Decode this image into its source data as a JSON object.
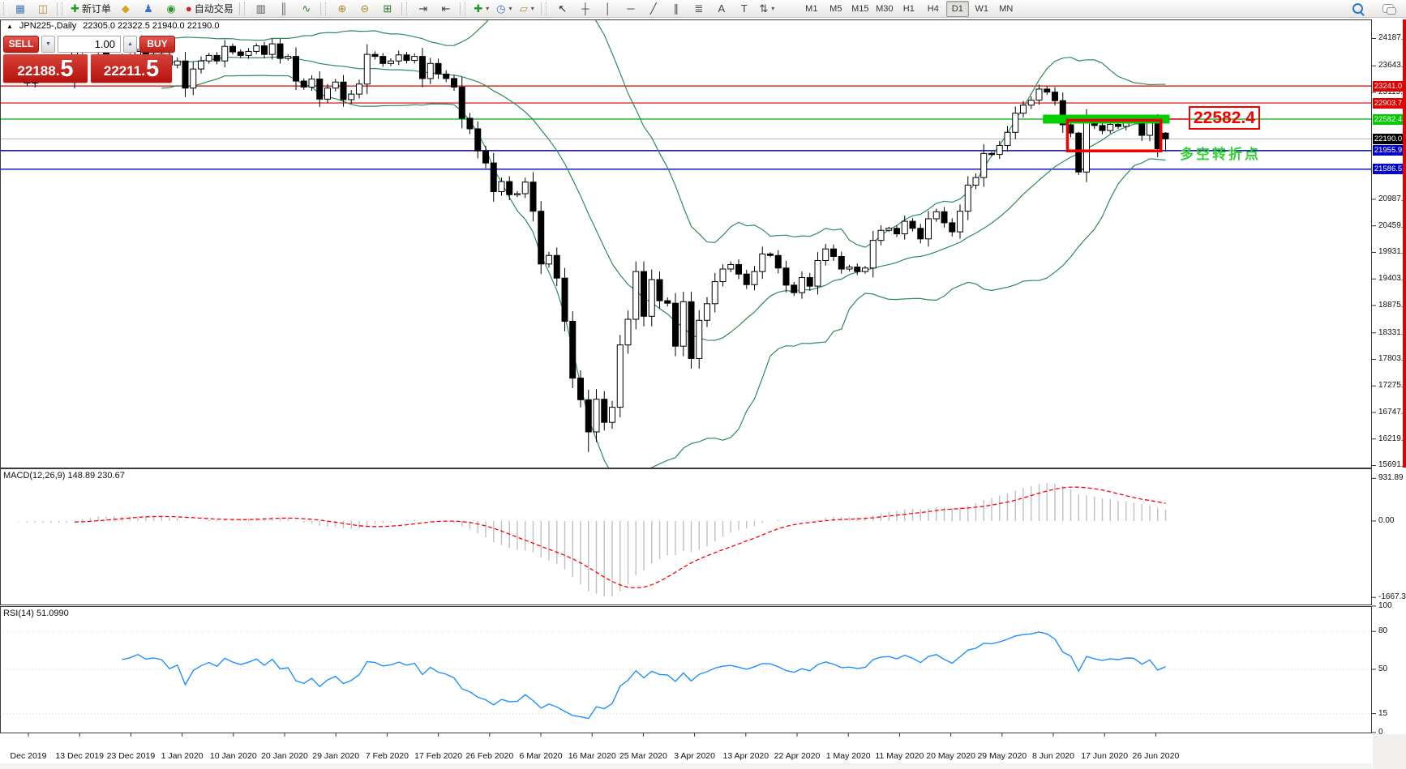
{
  "header": {
    "collapse_arrow": "▲",
    "symbol_period": "JPN225-,Daily",
    "ohlc": "22305.0 22322.5 21940.0 22190.0"
  },
  "trade_panel": {
    "sell_label": "SELL",
    "buy_label": "BUY",
    "volume": "1.00",
    "bid": "22188.",
    "bid_pip": "5",
    "ask": "22211.",
    "ask_pip": "5",
    "spin_down_icon": "▼",
    "spin_up_icon": "▲"
  },
  "toolbar": {
    "groups": [
      {
        "items": [
          {
            "name": "new-chart-icon",
            "glyph": "▦",
            "color": "#4a7ab5"
          },
          {
            "name": "profiles-icon",
            "glyph": "◫",
            "color": "#b08a30"
          }
        ]
      },
      {
        "items": [
          {
            "name": "new-order-button",
            "glyph": "✚",
            "color": "#1f9e1f",
            "label": "新订单"
          },
          {
            "name": "experts-icon",
            "glyph": "◆",
            "color": "#d5a518"
          },
          {
            "name": "mql-community-icon",
            "glyph": "♟",
            "color": "#3a6fd8"
          },
          {
            "name": "signals-icon",
            "glyph": "◉",
            "color": "#2a9a2a"
          },
          {
            "name": "auto-trading-button",
            "glyph": "●",
            "color": "#d02020",
            "label": "自动交易"
          }
        ]
      },
      {
        "items": [
          {
            "name": "bar-chart-icon",
            "glyph": "▥",
            "color": "#555555"
          },
          {
            "name": "candlestick-chart-icon",
            "glyph": "║",
            "color": "#555555"
          },
          {
            "name": "line-chart-icon",
            "glyph": "∿",
            "color": "#2a7a2a"
          }
        ]
      },
      {
        "items": [
          {
            "name": "zoom-in-icon",
            "glyph": "⊕",
            "color": "#b08a30"
          },
          {
            "name": "zoom-out-icon",
            "glyph": "⊖",
            "color": "#b08a30"
          },
          {
            "name": "tile-windows-icon",
            "glyph": "⊞",
            "color": "#2a7a2a"
          }
        ]
      },
      {
        "items": [
          {
            "name": "chart-shift-icon",
            "glyph": "⇥",
            "color": "#444444"
          },
          {
            "name": "auto-scroll-icon",
            "glyph": "⇤",
            "color": "#444444"
          }
        ]
      },
      {
        "items": [
          {
            "name": "indicators-icon",
            "glyph": "✚",
            "color": "#1f9e1f",
            "caret": true
          },
          {
            "name": "periods-icon",
            "glyph": "◷",
            "color": "#3a6fd8",
            "caret": true
          },
          {
            "name": "templates-icon",
            "glyph": "▱",
            "color": "#b08a30",
            "caret": true
          }
        ]
      },
      {
        "items": [
          {
            "name": "cursor-tool",
            "glyph": "↖",
            "color": "#222222"
          },
          {
            "name": "crosshair-tool",
            "glyph": "┼",
            "color": "#444444"
          },
          {
            "name": "vertical-line-tool",
            "glyph": "│",
            "color": "#444444"
          },
          {
            "name": "horizontal-line-tool",
            "glyph": "─",
            "color": "#444444"
          },
          {
            "name": "trendline-tool",
            "glyph": "╱",
            "color": "#444444"
          },
          {
            "name": "equidistant-channel-tool",
            "glyph": "∥",
            "color": "#444444"
          },
          {
            "name": "fibonacci-tool",
            "glyph": "≣",
            "color": "#444444"
          },
          {
            "name": "text-tool",
            "glyph": "A",
            "color": "#444444"
          },
          {
            "name": "text-label-tool",
            "glyph": "T",
            "color": "#444444"
          },
          {
            "name": "arrows-tool",
            "glyph": "⇅",
            "color": "#444444",
            "caret": true
          }
        ]
      }
    ],
    "periods": [
      "M1",
      "M5",
      "M15",
      "M30",
      "H1",
      "H4",
      "D1",
      "W1",
      "MN"
    ],
    "active_period": "D1"
  },
  "chart_data": {
    "type": "candlestick",
    "symbol": "JPN225-",
    "timeframe": "Daily",
    "last_candle": {
      "open": 22305.0,
      "high": 22322.5,
      "low": 21940.0,
      "close": 22190.0
    },
    "closes": [
      23530,
      23380,
      23300,
      23430,
      23410,
      23390,
      23420,
      23390,
      23950,
      24020,
      23950,
      24080,
      23820,
      23830,
      23780,
      23830,
      23930,
      23840,
      23870,
      23840,
      23660,
      23740,
      23200,
      23580,
      23740,
      23850,
      23740,
      24030,
      23920,
      23850,
      23930,
      24040,
      23870,
      24080,
      23790,
      23830,
      23340,
      23220,
      23380,
      22980,
      23200,
      23320,
      22970,
      23080,
      23280,
      23870,
      23830,
      23690,
      23740,
      23860,
      23750,
      23830,
      23390,
      23690,
      23480,
      23390,
      23220,
      22600,
      22390,
      21950,
      21710,
      21140,
      21340,
      21080,
      21100,
      21330,
      20750,
      19700,
      19870,
      19420,
      18560,
      17430,
      17000,
      16360,
      17010,
      16550,
      16850,
      18090,
      18600,
      19550,
      18660,
      19390,
      18970,
      18920,
      18065,
      18950,
      17820,
      18580,
      18910,
      19350,
      19600,
      19690,
      19500,
      19290,
      19550,
      19900,
      19870,
      19620,
      19280,
      19130,
      19430,
      19260,
      19770,
      20000,
      19850,
      19600,
      19640,
      19550,
      19620,
      20170,
      20370,
      20410,
      20300,
      20550,
      20410,
      20200,
      20600,
      20740,
      20520,
      20340,
      20750,
      21270,
      21420,
      21900,
      21880,
      22060,
      22320,
      22700,
      22860,
      22960,
      23180,
      23120,
      22950,
      22470,
      22305,
      21530,
      22582,
      22456,
      22355,
      22478,
      22437,
      22549,
      22534,
      22260,
      22512,
      21995,
      22190
    ],
    "price_axis_ticks": [
      24187.0,
      23643.0,
      23115.0,
      20987.0,
      20459.0,
      19931.0,
      19403.0,
      18875.0,
      18331.0,
      17803.0,
      17275.0,
      16747.0,
      16219.0,
      15691.0
    ],
    "price_labels": [
      {
        "value": "23241.0",
        "price": 23241.0,
        "bg": "#e00000"
      },
      {
        "value": "22903.7",
        "price": 22903.7,
        "bg": "#e00000"
      },
      {
        "value": "22582.4",
        "price": 22582.4,
        "bg": "#00cc00"
      },
      {
        "value": "22190.0",
        "price": 22190.0,
        "bg": "#000000"
      },
      {
        "value": "21955.9",
        "price": 21955.9,
        "bg": "#0000cc"
      },
      {
        "value": "21586.5",
        "price": 21586.5,
        "bg": "#0000cc"
      }
    ],
    "level_lines": [
      {
        "price": 23241.0,
        "color": "#d40000",
        "width": 1.2
      },
      {
        "price": 22903.7,
        "color": "#d40000",
        "width": 1.2
      },
      {
        "price": 22582.4,
        "color": "#00a800",
        "width": 1.2
      },
      {
        "price": 22190.0,
        "color": "#b4b4b4",
        "width": 1
      },
      {
        "price": 21955.9,
        "color": "#0000bb",
        "width": 1.4
      },
      {
        "price": 21586.5,
        "color": "#0000bb",
        "width": 1.4
      }
    ],
    "dates": [
      "Dec 2019",
      "13 Dec 2019",
      "23 Dec 2019",
      "1 Jan 2020",
      "10 Jan 2020",
      "20 Jan 2020",
      "29 Jan 2020",
      "7 Feb 2020",
      "17 Feb 2020",
      "26 Feb 2020",
      "6 Mar 2020",
      "16 Mar 2020",
      "25 Mar 2020",
      "3 Apr 2020",
      "13 Apr 2020",
      "22 Apr 2020",
      "1 May 2020",
      "11 May 2020",
      "20 May 2020",
      "29 May 2020",
      "8 Jun 2020",
      "17 Jun 2020",
      "26 Jun 2020"
    ],
    "indicators": {
      "macd": {
        "label": "MACD(12,26,9)",
        "values": "148.89 230.67",
        "axis_values": [
          931.89,
          0.0,
          -1667.31
        ],
        "axis_labels": [
          "931.89",
          "0.00",
          "-1667.31"
        ],
        "histogram_color": "#c0c0c0",
        "signal_color": "#ff0000"
      },
      "rsi": {
        "label": "RSI(14)",
        "value": "51.0990",
        "axis_values": [
          100,
          80,
          50,
          15,
          0
        ],
        "line_color": "#1e90ff",
        "level_values": [
          80,
          50,
          15
        ]
      }
    },
    "bollinger_color": "#2e8b57",
    "annotations": {
      "price_callout": "22582.4",
      "turning_point_text": "多空转折点",
      "green_bar": {
        "price": 22582.4,
        "idx_from": 131,
        "idx_to": 146,
        "color": "#00d000"
      },
      "red_box": {
        "price_top": 22560,
        "price_bottom": 21950,
        "idx_from": 134,
        "idx_to": 145,
        "color": "#ee0000"
      },
      "callout_anchor_color": "#f20000"
    }
  }
}
